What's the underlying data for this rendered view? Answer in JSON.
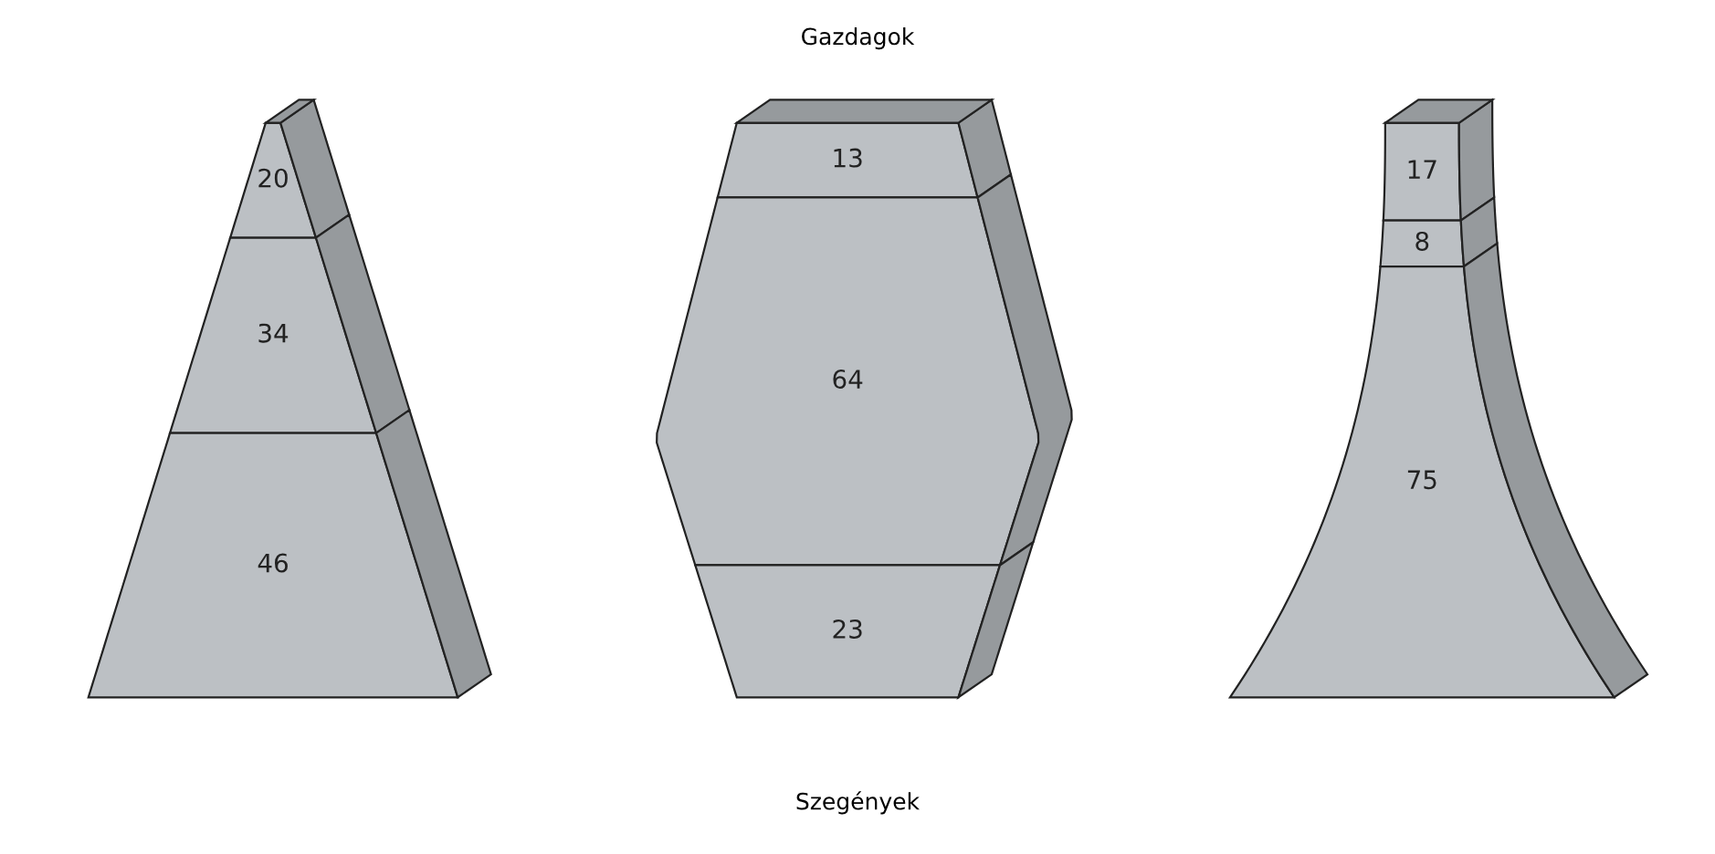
{
  "chart_data": [
    {
      "type": "other",
      "categories": [
        null,
        null,
        null
      ],
      "values": [
        20,
        34,
        46
      ],
      "colors": [
        "#bcc0c4",
        "#bcc0c4",
        "#bcc0c4"
      ],
      "data_labels": true
    },
    {
      "type": "other",
      "title": "Gazdagok",
      "xlabel": "Szegények",
      "categories": [
        null,
        null,
        null
      ],
      "values": [
        13,
        64,
        23
      ],
      "colors": [
        "#bcc0c4",
        "#bcc0c4",
        "#bcc0c4"
      ],
      "data_labels": true
    },
    {
      "type": "other",
      "categories": [
        null,
        null,
        null
      ],
      "values": [
        17,
        8,
        75
      ],
      "colors": [
        "#bcc0c4",
        "#bcc0c4",
        "#bcc0c4"
      ],
      "data_labels": true
    }
  ]
}
